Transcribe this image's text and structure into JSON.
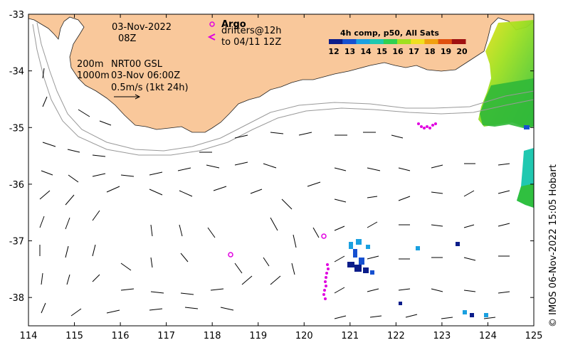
{
  "date": "03-Nov-2022",
  "hour": "08Z",
  "depth_line_1": "200m",
  "depth_line_2": "1000m",
  "product": "NRT00 GSL",
  "product_time": "03-Nov 06:00Z",
  "scale_label": "0.5m/s (1kt 24h)",
  "argo_label": "Argo",
  "drifter_line_1": "drifters@12h",
  "drifter_line_2": "to 04/11 12Z",
  "colorbar_title": "4h comp, p50, All Sats",
  "colorbar_ticks": [
    "12",
    "13",
    "14",
    "15",
    "16",
    "17",
    "18",
    "19",
    "20"
  ],
  "colorbar_colors": [
    "#0b1d8a",
    "#1650d0",
    "#1aa0e0",
    "#20c8b0",
    "#30d050",
    "#a0e020",
    "#f0e020",
    "#f0a010",
    "#e05010",
    "#a01010"
  ],
  "credit": "© IMOS 06-Nov-2022 15:05 Hobart",
  "x_ticks": [
    "114",
    "115",
    "116",
    "117",
    "118",
    "119",
    "120",
    "121",
    "122",
    "123",
    "124",
    "125"
  ],
  "y_ticks": [
    "-33",
    "-34",
    "-35",
    "-36",
    "-37",
    "-38"
  ],
  "land_color": "#f9c89b",
  "argo_color": "#e000e0",
  "map_data": {
    "lon_range": [
      114,
      125
    ],
    "lat_range": [
      -38.5,
      -33
    ],
    "argo_floats": [
      [
        118.4,
        -37.25
      ],
      [
        120.45,
        -36.95
      ],
      [
        118.05,
        -33.2
      ]
    ]
  }
}
